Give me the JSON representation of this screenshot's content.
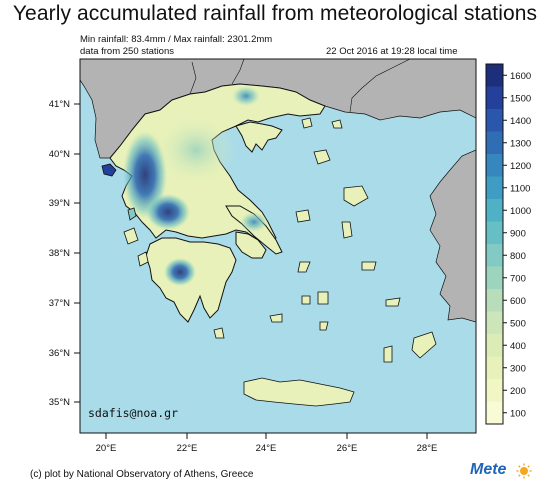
{
  "title": "Yearly accumulated rainfall from meteorological stations",
  "subtitle": {
    "min_max": "Min rainfall: 83.4mm / Max rainfall: 2301.2mm",
    "stations": "data from 250 stations",
    "timestamp": "22 Oct 2016 at 19:28 local time"
  },
  "map": {
    "lat_labels": [
      "41°N",
      "40°N",
      "39°N",
      "38°N",
      "37°N",
      "36°N",
      "35°N"
    ],
    "lon_labels": [
      "20°E",
      "22°E",
      "24°E",
      "26°E",
      "28°E"
    ],
    "watermark": "sdafis@noa.gr",
    "colors": {
      "sea": "#a9dbe9",
      "land_outside": "#b3b3b3",
      "border": "#111111"
    }
  },
  "colorbar": {
    "labels": [
      "1600",
      "1500",
      "1400",
      "1300",
      "1200",
      "1100",
      "1000",
      "900",
      "800",
      "700",
      "600",
      "500",
      "400",
      "300",
      "200",
      "100"
    ],
    "colors": [
      "#1d2f7a",
      "#23409a",
      "#2a57ab",
      "#2f6db5",
      "#3587bd",
      "#3f9dc4",
      "#4eb1c6",
      "#66bfc5",
      "#82cac3",
      "#9dd4bf",
      "#b7ddbb",
      "#cce6b9",
      "#dcecb6",
      "#e7f1b9",
      "#f0f6c4",
      "#f8fbd6"
    ]
  },
  "footer": {
    "credit": "(c) plot by National Observatory of Athens, Greece",
    "logo_text": "Mete",
    "logo_icon": "sun-icon"
  }
}
